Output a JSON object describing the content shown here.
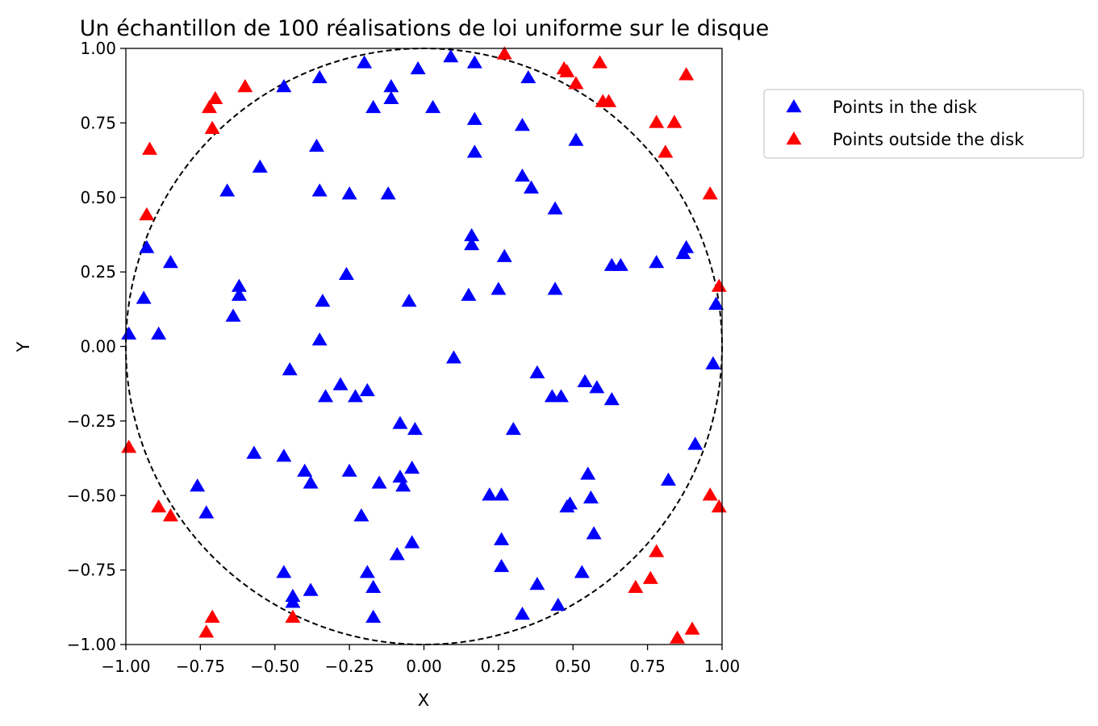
{
  "chart_data": {
    "type": "scatter",
    "title": "Un échantillon de 100 réalisations de loi uniforme sur le disque",
    "xlabel": "X",
    "ylabel": "Y",
    "xlim": [
      -1,
      1
    ],
    "ylim": [
      -1,
      1
    ],
    "x_ticks": [
      "−1.00",
      "−0.75",
      "−0.50",
      "−0.25",
      "0.00",
      "0.25",
      "0.50",
      "0.75",
      "1.00"
    ],
    "y_ticks": [
      "−1.00",
      "−0.75",
      "−0.50",
      "−0.25",
      "0.00",
      "0.25",
      "0.50",
      "0.75",
      "1.00"
    ],
    "grid": false,
    "legend_position": "outside-top-right",
    "unit_circle": {
      "center": [
        0,
        0
      ],
      "radius": 1,
      "style": "dashed",
      "color": "#000000"
    },
    "series": [
      {
        "name": "Points in the disk",
        "color": "#0000ff",
        "marker": "triangle",
        "points": [
          [
            0.09,
            0.97
          ],
          [
            0.17,
            0.95
          ],
          [
            -0.2,
            0.95
          ],
          [
            -0.02,
            0.93
          ],
          [
            0.35,
            0.9
          ],
          [
            -0.35,
            0.9
          ],
          [
            -0.47,
            0.87
          ],
          [
            -0.11,
            0.87
          ],
          [
            -0.11,
            0.83
          ],
          [
            -0.17,
            0.8
          ],
          [
            0.03,
            0.8
          ],
          [
            0.17,
            0.76
          ],
          [
            0.33,
            0.74
          ],
          [
            0.51,
            0.69
          ],
          [
            -0.36,
            0.67
          ],
          [
            0.17,
            0.65
          ],
          [
            -0.55,
            0.6
          ],
          [
            0.33,
            0.57
          ],
          [
            0.36,
            0.53
          ],
          [
            -0.66,
            0.52
          ],
          [
            -0.35,
            0.52
          ],
          [
            -0.25,
            0.51
          ],
          [
            -0.12,
            0.51
          ],
          [
            0.44,
            0.46
          ],
          [
            0.16,
            0.37
          ],
          [
            0.16,
            0.34
          ],
          [
            -0.93,
            0.33
          ],
          [
            0.88,
            0.33
          ],
          [
            0.27,
            0.3
          ],
          [
            0.87,
            0.31
          ],
          [
            -0.85,
            0.28
          ],
          [
            0.63,
            0.27
          ],
          [
            0.66,
            0.27
          ],
          [
            0.78,
            0.28
          ],
          [
            -0.26,
            0.24
          ],
          [
            -0.62,
            0.2
          ],
          [
            0.25,
            0.19
          ],
          [
            0.44,
            0.19
          ],
          [
            -0.62,
            0.17
          ],
          [
            0.15,
            0.17
          ],
          [
            -0.94,
            0.16
          ],
          [
            -0.34,
            0.15
          ],
          [
            -0.05,
            0.15
          ],
          [
            0.98,
            0.14
          ],
          [
            -0.64,
            0.1
          ],
          [
            -0.99,
            0.04
          ],
          [
            -0.89,
            0.04
          ],
          [
            -0.35,
            0.02
          ],
          [
            0.1,
            -0.04
          ],
          [
            0.97,
            -0.06
          ],
          [
            -0.45,
            -0.08
          ],
          [
            0.38,
            -0.09
          ],
          [
            0.54,
            -0.12
          ],
          [
            -0.28,
            -0.13
          ],
          [
            0.58,
            -0.14
          ],
          [
            -0.19,
            -0.15
          ],
          [
            -0.33,
            -0.17
          ],
          [
            -0.23,
            -0.17
          ],
          [
            0.43,
            -0.17
          ],
          [
            0.46,
            -0.17
          ],
          [
            0.63,
            -0.18
          ],
          [
            -0.08,
            -0.26
          ],
          [
            -0.03,
            -0.28
          ],
          [
            0.3,
            -0.28
          ],
          [
            0.91,
            -0.33
          ],
          [
            -0.57,
            -0.36
          ],
          [
            -0.47,
            -0.37
          ],
          [
            -0.04,
            -0.41
          ],
          [
            -0.4,
            -0.42
          ],
          [
            -0.25,
            -0.42
          ],
          [
            0.55,
            -0.43
          ],
          [
            -0.38,
            -0.46
          ],
          [
            -0.15,
            -0.46
          ],
          [
            -0.08,
            -0.44
          ],
          [
            -0.07,
            -0.47
          ],
          [
            0.82,
            -0.45
          ],
          [
            -0.76,
            -0.47
          ],
          [
            0.22,
            -0.5
          ],
          [
            0.26,
            -0.5
          ],
          [
            0.56,
            -0.51
          ],
          [
            0.49,
            -0.53
          ],
          [
            0.48,
            -0.54
          ],
          [
            -0.73,
            -0.56
          ],
          [
            -0.21,
            -0.57
          ],
          [
            0.26,
            -0.65
          ],
          [
            0.57,
            -0.63
          ],
          [
            -0.04,
            -0.66
          ],
          [
            -0.09,
            -0.7
          ],
          [
            0.26,
            -0.74
          ],
          [
            -0.47,
            -0.76
          ],
          [
            -0.19,
            -0.76
          ],
          [
            0.53,
            -0.76
          ],
          [
            0.38,
            -0.8
          ],
          [
            -0.17,
            -0.81
          ],
          [
            -0.38,
            -0.82
          ],
          [
            -0.44,
            -0.84
          ],
          [
            -0.44,
            -0.86
          ],
          [
            0.45,
            -0.87
          ],
          [
            0.33,
            -0.9
          ],
          [
            -0.17,
            -0.91
          ]
        ]
      },
      {
        "name": "Points outside the disk",
        "color": "#ff0000",
        "marker": "triangle",
        "points": [
          [
            0.27,
            0.98
          ],
          [
            0.47,
            0.93
          ],
          [
            0.59,
            0.95
          ],
          [
            0.88,
            0.91
          ],
          [
            0.48,
            0.92
          ],
          [
            0.51,
            0.88
          ],
          [
            -0.6,
            0.87
          ],
          [
            -0.7,
            0.83
          ],
          [
            -0.72,
            0.8
          ],
          [
            0.6,
            0.82
          ],
          [
            0.62,
            0.82
          ],
          [
            -0.71,
            0.73
          ],
          [
            0.78,
            0.75
          ],
          [
            0.84,
            0.75
          ],
          [
            -0.92,
            0.66
          ],
          [
            0.81,
            0.65
          ],
          [
            0.96,
            0.51
          ],
          [
            -0.93,
            0.44
          ],
          [
            0.99,
            0.2
          ],
          [
            -0.99,
            -0.34
          ],
          [
            0.96,
            -0.5
          ],
          [
            0.99,
            -0.54
          ],
          [
            -0.89,
            -0.54
          ],
          [
            -0.85,
            -0.57
          ],
          [
            0.78,
            -0.69
          ],
          [
            0.76,
            -0.78
          ],
          [
            0.71,
            -0.81
          ],
          [
            -0.71,
            -0.91
          ],
          [
            -0.44,
            -0.91
          ],
          [
            0.9,
            -0.95
          ],
          [
            -0.73,
            -0.96
          ],
          [
            0.85,
            -0.98
          ]
        ]
      }
    ]
  }
}
